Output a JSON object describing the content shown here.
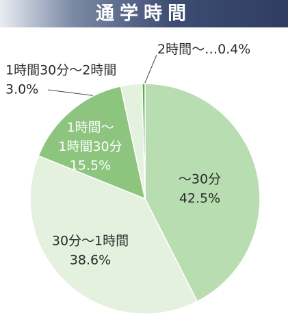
{
  "title": "通学時間",
  "chart_data": {
    "type": "pie",
    "categories": [
      "〜30分",
      "30分〜1時間",
      "1時間〜\n1時間30分",
      "1時間30分〜2時間",
      "2時間〜…"
    ],
    "values": [
      42.5,
      38.6,
      15.5,
      3.0,
      0.4
    ],
    "value_labels": [
      "42.5%",
      "38.6%",
      "15.5%",
      "3.0%",
      "0.4%"
    ],
    "colors": [
      "#b8ddb0",
      "#e4f1de",
      "#8dc57f",
      "#e4f1de",
      "#5aa94f"
    ]
  }
}
